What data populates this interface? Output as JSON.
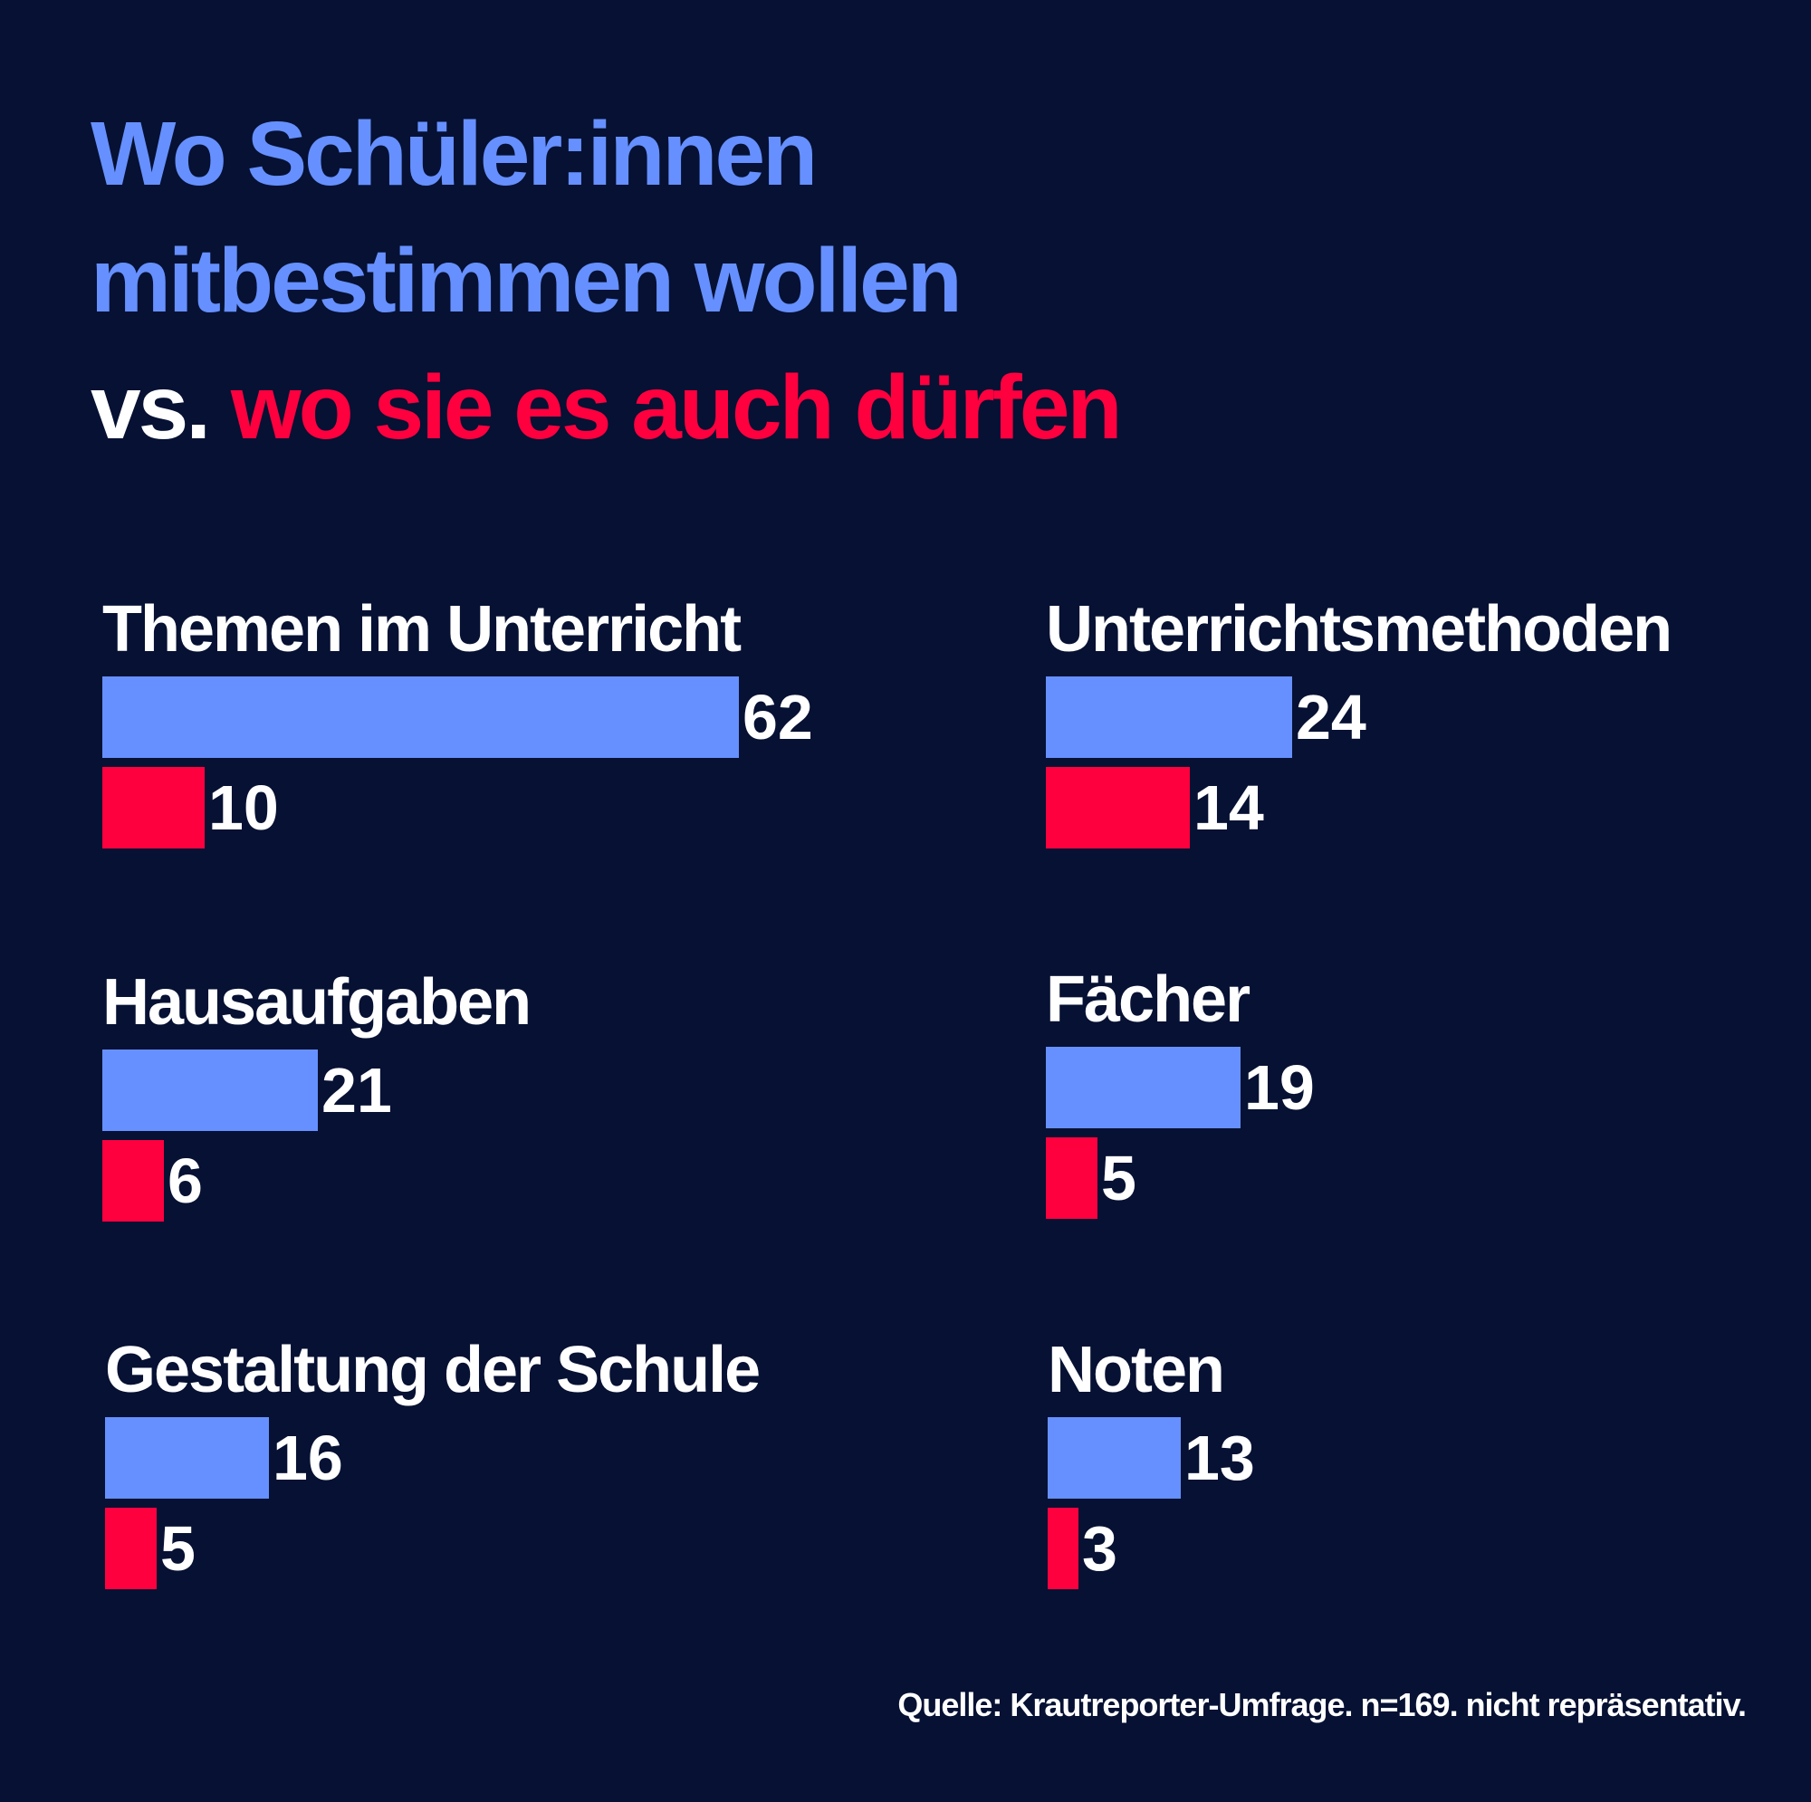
{
  "title": {
    "line1": "Wo Schüler:innen",
    "line2": "mitbestimmen wollen",
    "line3_prefix": "vs.",
    "line3_highlight": "wo sie es auch dürfen"
  },
  "source": "Quelle: Krautreporter-Umfrage. n=169. nicht repräsentativ.",
  "colors": {
    "background": "#061133",
    "want": "#6690FF",
    "allowed": "#FF003F",
    "text": "#FFFFFF"
  },
  "chart_data": {
    "type": "bar",
    "orientation": "horizontal",
    "xlim": [
      0,
      62
    ],
    "categories": [
      "Themen im Unterricht",
      "Unterrichtsmethoden",
      "Hausaufgaben",
      "Fächer",
      "Gestaltung der Schule",
      "Noten"
    ],
    "series": [
      {
        "values": [
          62,
          24,
          21,
          19,
          16,
          13
        ]
      },
      {
        "values": [
          10,
          14,
          6,
          5,
          5,
          3
        ]
      }
    ]
  }
}
